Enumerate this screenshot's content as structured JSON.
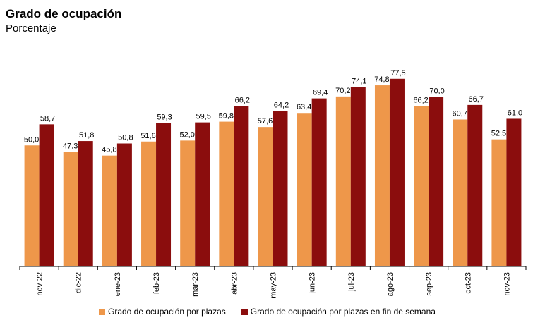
{
  "chart_data": {
    "type": "bar",
    "title": "Grado de ocupación",
    "subtitle": "Porcentaje",
    "categories": [
      "nov-22",
      "dic-22",
      "ene-23",
      "feb-23",
      "mar-23",
      "abr-23",
      "may-23",
      "jun-23",
      "jul-23",
      "ago-23",
      "sep-23",
      "oct-23",
      "nov-23"
    ],
    "series": [
      {
        "name": "Grado de ocupación por plazas",
        "color": "#ee974a",
        "values": [
          50.0,
          47.3,
          45.8,
          51.6,
          52.0,
          59.8,
          57.6,
          63.4,
          70.2,
          74.8,
          66.2,
          60.7,
          52.5
        ],
        "labels": [
          "50,0",
          "47,3",
          "45,8",
          "51,6",
          "52,0",
          "59,8",
          "57,6",
          "63,4",
          "70,2",
          "74,8",
          "66,2",
          "60,7",
          "52,5"
        ]
      },
      {
        "name": "Grado de ocupación por plazas en fin de semana",
        "color": "#8b0d0d",
        "values": [
          58.7,
          51.8,
          50.8,
          59.3,
          59.5,
          66.2,
          64.2,
          69.4,
          74.1,
          77.5,
          70.0,
          66.7,
          61.0
        ],
        "labels": [
          "58,7",
          "51,8",
          "50,8",
          "59,3",
          "59,5",
          "66,2",
          "64,2",
          "69,4",
          "74,1",
          "77,5",
          "70,0",
          "66,7",
          "61,0"
        ]
      }
    ],
    "ylim": [
      0,
      100
    ],
    "xlabel": "",
    "ylabel": "",
    "grid": false,
    "legend_position": "bottom"
  }
}
